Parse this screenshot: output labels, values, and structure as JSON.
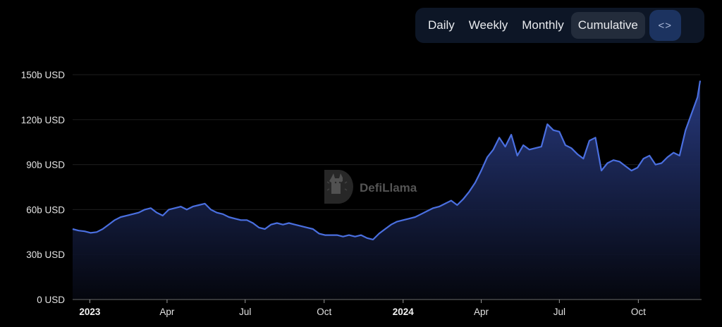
{
  "toolbar": {
    "tabs": [
      {
        "label": "Daily",
        "active": false
      },
      {
        "label": "Weekly",
        "active": false
      },
      {
        "label": "Monthly",
        "active": false
      },
      {
        "label": "Cumulative",
        "active": true
      }
    ],
    "embed_icon": "code-brackets-icon",
    "embed_glyph": "<>"
  },
  "watermark": {
    "text": "DefiLlama",
    "icon": "llama-logo-icon"
  },
  "colors": {
    "background": "#000000",
    "line": "#4a6fe0",
    "area_top": "#2a3d86",
    "area_bottom": "#05070f",
    "grid": "#1e1e1e",
    "toolbar_bg": "#0d1626",
    "active_tab_bg": "#232c3b",
    "embed_bg": "#1c3360"
  },
  "chart_data": {
    "type": "area",
    "title": "",
    "xlabel": "",
    "ylabel": "",
    "unit": "b USD",
    "ylim": [
      0,
      150
    ],
    "yticks": [
      {
        "value": 0,
        "label": "0 USD"
      },
      {
        "value": 30,
        "label": "30b USD"
      },
      {
        "value": 60,
        "label": "60b USD"
      },
      {
        "value": 90,
        "label": "90b USD"
      },
      {
        "value": 120,
        "label": "120b USD"
      },
      {
        "value": 150,
        "label": "150b USD"
      }
    ],
    "xticks": [
      {
        "label": "2023",
        "bold": true,
        "date": "2023-01-01"
      },
      {
        "label": "Apr",
        "bold": false,
        "date": "2023-04-01"
      },
      {
        "label": "Jul",
        "bold": false,
        "date": "2023-07-01"
      },
      {
        "label": "Oct",
        "bold": false,
        "date": "2023-10-01"
      },
      {
        "label": "2024",
        "bold": true,
        "date": "2024-01-01"
      },
      {
        "label": "Apr",
        "bold": false,
        "date": "2024-04-01"
      },
      {
        "label": "Jul",
        "bold": false,
        "date": "2024-07-01"
      },
      {
        "label": "Oct",
        "bold": false,
        "date": "2024-10-01"
      }
    ],
    "grid": true,
    "legend": "none",
    "x": [
      "2022-12-12",
      "2022-12-19",
      "2022-12-26",
      "2023-01-02",
      "2023-01-09",
      "2023-01-16",
      "2023-01-23",
      "2023-01-30",
      "2023-02-06",
      "2023-02-13",
      "2023-02-20",
      "2023-02-27",
      "2023-03-06",
      "2023-03-13",
      "2023-03-20",
      "2023-03-27",
      "2023-04-03",
      "2023-04-10",
      "2023-04-17",
      "2023-04-24",
      "2023-05-01",
      "2023-05-08",
      "2023-05-15",
      "2023-05-22",
      "2023-05-29",
      "2023-06-05",
      "2023-06-12",
      "2023-06-19",
      "2023-06-26",
      "2023-07-03",
      "2023-07-10",
      "2023-07-17",
      "2023-07-24",
      "2023-07-31",
      "2023-08-07",
      "2023-08-14",
      "2023-08-21",
      "2023-08-28",
      "2023-09-04",
      "2023-09-11",
      "2023-09-18",
      "2023-09-25",
      "2023-10-02",
      "2023-10-09",
      "2023-10-16",
      "2023-10-23",
      "2023-10-30",
      "2023-11-06",
      "2023-11-13",
      "2023-11-20",
      "2023-11-27",
      "2023-12-04",
      "2023-12-11",
      "2023-12-18",
      "2023-12-25",
      "2024-01-01",
      "2024-01-08",
      "2024-01-15",
      "2024-01-22",
      "2024-01-29",
      "2024-02-05",
      "2024-02-12",
      "2024-02-19",
      "2024-02-26",
      "2024-03-04",
      "2024-03-11",
      "2024-03-18",
      "2024-03-25",
      "2024-04-01",
      "2024-04-08",
      "2024-04-15",
      "2024-04-22",
      "2024-04-29",
      "2024-05-06",
      "2024-05-13",
      "2024-05-20",
      "2024-05-27",
      "2024-06-03",
      "2024-06-10",
      "2024-06-17",
      "2024-06-24",
      "2024-07-01",
      "2024-07-08",
      "2024-07-15",
      "2024-07-22",
      "2024-07-29",
      "2024-08-05",
      "2024-08-12",
      "2024-08-19",
      "2024-08-26",
      "2024-09-02",
      "2024-09-09",
      "2024-09-16",
      "2024-09-23",
      "2024-09-30",
      "2024-10-07",
      "2024-10-14",
      "2024-10-21",
      "2024-10-28",
      "2024-11-04",
      "2024-11-11",
      "2024-11-18",
      "2024-11-25",
      "2024-12-02",
      "2024-12-09",
      "2024-12-12"
    ],
    "series": [
      {
        "name": "Cumulative",
        "values": [
          47,
          46,
          45.5,
          44.5,
          45,
          47,
          50,
          53,
          55,
          56,
          57,
          58,
          60,
          61,
          58,
          56,
          60,
          61,
          62,
          60,
          62,
          63,
          64,
          60,
          58,
          57,
          55,
          54,
          53,
          53,
          51,
          48,
          47,
          50,
          51,
          50,
          51,
          50,
          49,
          48,
          47,
          44,
          43,
          43,
          43,
          42,
          43,
          42,
          43,
          41,
          40,
          44,
          47,
          50,
          52,
          53,
          54,
          55,
          57,
          59,
          61,
          62,
          64,
          66,
          63,
          67,
          72,
          78,
          86,
          95,
          100,
          108,
          102,
          110,
          96,
          103,
          100,
          101,
          102,
          117,
          113,
          112,
          103,
          101,
          97,
          94,
          106,
          108,
          86,
          91,
          93,
          92,
          89,
          86,
          88,
          94,
          96,
          90,
          91,
          95,
          98,
          96,
          113,
          124,
          135,
          146
        ]
      }
    ]
  }
}
